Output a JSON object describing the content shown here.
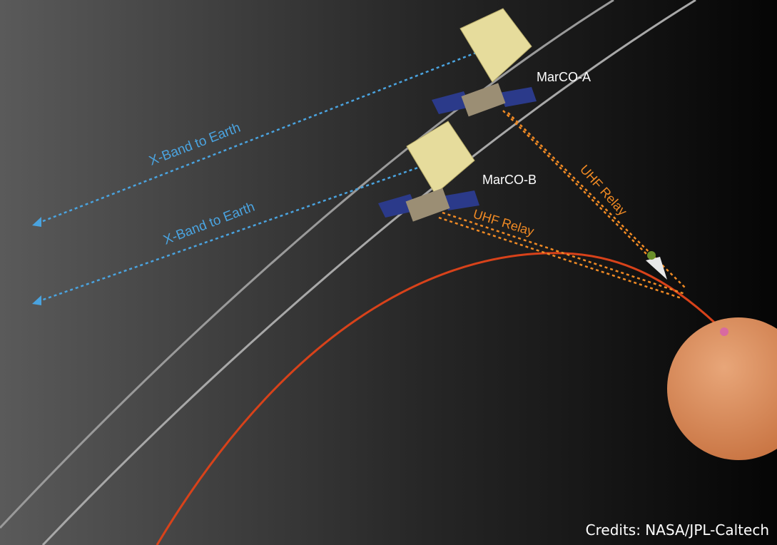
{
  "labels": {
    "marco_a": "MarCO-A",
    "marco_b": "MarCO-B",
    "xband_a": "X-Band to Earth",
    "xband_b": "X-Band to Earth",
    "uhf_a": "UHF Relay",
    "uhf_b": "UHF Relay"
  },
  "credits": "Credits: NASA/JPL-Caltech"
}
